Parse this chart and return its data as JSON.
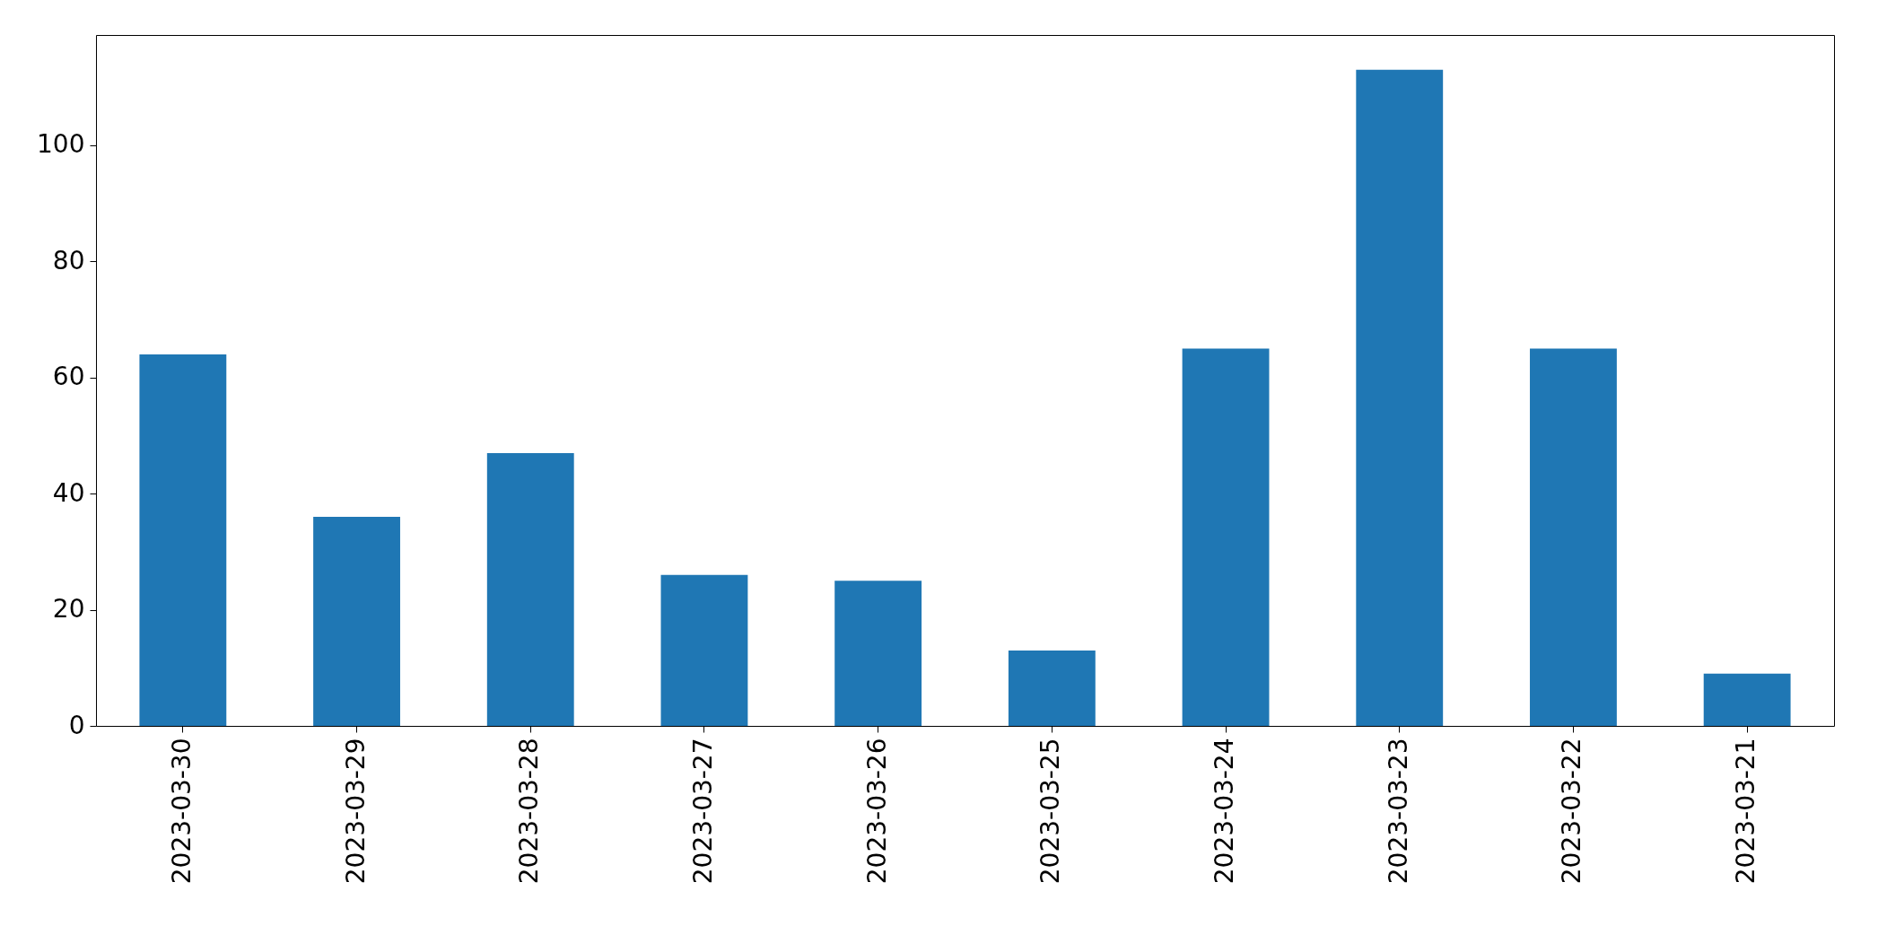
{
  "chart_data": {
    "type": "bar",
    "categories": [
      "2023-03-30",
      "2023-03-29",
      "2023-03-28",
      "2023-03-27",
      "2023-03-26",
      "2023-03-25",
      "2023-03-24",
      "2023-03-23",
      "2023-03-22",
      "2023-03-21"
    ],
    "values": [
      64,
      36,
      47,
      26,
      25,
      13,
      65,
      113,
      65,
      9
    ],
    "color": "#1f77b4",
    "ylim": [
      0,
      119
    ],
    "yticks": [
      0,
      20,
      40,
      60,
      80,
      100
    ],
    "grid": false
  }
}
